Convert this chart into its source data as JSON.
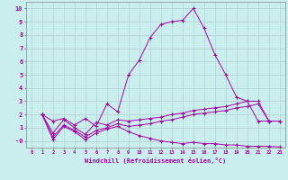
{
  "xlabel": "Windchill (Refroidissement éolien,°C)",
  "background_color": "#caeeed",
  "line_color": "#aa00aa",
  "grid_color": "#b0c8c8",
  "xlim": [
    -0.5,
    23.5
  ],
  "ylim": [
    -0.5,
    10.5
  ],
  "xticks": [
    0,
    1,
    2,
    3,
    4,
    5,
    6,
    7,
    8,
    9,
    10,
    11,
    12,
    13,
    14,
    15,
    16,
    17,
    18,
    19,
    20,
    21,
    22,
    23
  ],
  "yticks": [
    0,
    1,
    2,
    3,
    4,
    5,
    6,
    7,
    8,
    9,
    10
  ],
  "ytick_labels": [
    "-0",
    "1",
    "2",
    "3",
    "4",
    "5",
    "6",
    "7",
    "8",
    "9",
    "10"
  ],
  "lines": [
    {
      "x": [
        1,
        2,
        3,
        4,
        5,
        6,
        7,
        8,
        9,
        10,
        11,
        12,
        13,
        14,
        15,
        16,
        17,
        18,
        19,
        20,
        21,
        22
      ],
      "y": [
        2.0,
        1.5,
        1.7,
        1.2,
        1.7,
        1.1,
        2.8,
        2.2,
        5.0,
        6.1,
        7.8,
        8.8,
        9.0,
        9.1,
        10.0,
        8.5,
        6.5,
        5.0,
        3.3,
        3.0,
        1.5,
        1.5
      ]
    },
    {
      "x": [
        1,
        2,
        3,
        4,
        5,
        6,
        7,
        8,
        9,
        10,
        11,
        12,
        13,
        14,
        15,
        16,
        17,
        18,
        19,
        20,
        21,
        22,
        23
      ],
      "y": [
        2.0,
        0.6,
        1.6,
        1.0,
        0.5,
        1.4,
        1.2,
        1.6,
        1.5,
        1.6,
        1.7,
        1.8,
        2.0,
        2.1,
        2.3,
        2.4,
        2.5,
        2.6,
        2.8,
        3.0,
        3.0,
        1.5,
        1.5
      ]
    },
    {
      "x": [
        1,
        2,
        3,
        4,
        5,
        6,
        7,
        8,
        9,
        10,
        11,
        12,
        13,
        14,
        15,
        16,
        17,
        18,
        19,
        20,
        21,
        22,
        23
      ],
      "y": [
        2.0,
        0.3,
        1.2,
        0.8,
        0.3,
        0.8,
        1.0,
        1.3,
        1.1,
        1.2,
        1.3,
        1.5,
        1.6,
        1.8,
        2.0,
        2.1,
        2.2,
        2.3,
        2.5,
        2.6,
        2.8,
        1.5,
        1.5
      ]
    },
    {
      "x": [
        1,
        2,
        3,
        4,
        5,
        6,
        7,
        8,
        9,
        10,
        11,
        12,
        13,
        14,
        15,
        16,
        17,
        18,
        19,
        20,
        21,
        22,
        23
      ],
      "y": [
        2.0,
        0.1,
        1.1,
        0.7,
        0.1,
        0.6,
        0.9,
        1.1,
        0.7,
        0.4,
        0.2,
        0.0,
        -0.1,
        -0.2,
        -0.1,
        -0.2,
        -0.2,
        -0.3,
        -0.3,
        -0.4,
        -0.4,
        -0.4,
        -0.45
      ]
    }
  ]
}
